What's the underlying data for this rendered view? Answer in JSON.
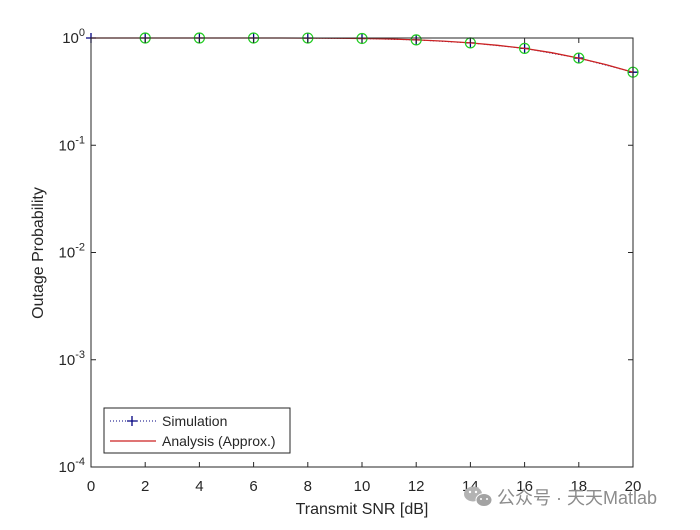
{
  "chart_data": {
    "type": "line",
    "xlabel": "Transmit SNR [dB]",
    "ylabel": "Outage Probability",
    "xlim": [
      0,
      20
    ],
    "ylim": [
      0.0001,
      1
    ],
    "yscale": "log",
    "x_ticks": [
      0,
      2,
      4,
      6,
      8,
      10,
      12,
      14,
      16,
      18,
      20
    ],
    "x_tick_labels": [
      "0",
      "2",
      "4",
      "6",
      "8",
      "10",
      "12",
      "14",
      "16",
      "18",
      "20"
    ],
    "y_ticks": [
      {
        "value": 1,
        "base": "10",
        "exp": "0"
      },
      {
        "value": 0.1,
        "base": "10",
        "exp": "-1"
      },
      {
        "value": 0.01,
        "base": "10",
        "exp": "-2"
      },
      {
        "value": 0.001,
        "base": "10",
        "exp": "-3"
      },
      {
        "value": 0.0001,
        "base": "10",
        "exp": "-4"
      }
    ],
    "grid": false,
    "legend_position": "bottom-left",
    "series": [
      {
        "name": "Simulation",
        "color": "#000080",
        "line_style": "dotted",
        "marker": "plus",
        "x": [
          0,
          2,
          4,
          6,
          8,
          10,
          12,
          14,
          16,
          18,
          20
        ],
        "values": [
          1.0,
          1.0,
          1.0,
          1.0,
          0.999,
          0.99,
          0.96,
          0.9,
          0.8,
          0.65,
          0.48
        ]
      },
      {
        "name": "Analysis (Approx.)",
        "color": "#cc2222",
        "line_style": "solid",
        "marker": "none",
        "x": [
          0,
          1,
          2,
          3,
          4,
          5,
          6,
          7,
          8,
          9,
          10,
          11,
          12,
          13,
          14,
          15,
          16,
          17,
          18,
          19,
          20
        ],
        "values": [
          1.0,
          1.0,
          1.0,
          1.0,
          1.0,
          1.0,
          1.0,
          0.999,
          0.998,
          0.995,
          0.99,
          0.978,
          0.96,
          0.935,
          0.9,
          0.855,
          0.8,
          0.73,
          0.65,
          0.565,
          0.48
        ]
      },
      {
        "name": "",
        "color": "#22cc22",
        "line_style": "none",
        "marker": "circle",
        "x": [
          2,
          4,
          6,
          8,
          10,
          12,
          14,
          16,
          18,
          20
        ],
        "values": [
          1.0,
          1.0,
          1.0,
          0.999,
          0.99,
          0.96,
          0.9,
          0.8,
          0.65,
          0.48
        ]
      }
    ]
  },
  "watermark": {
    "text": "公众号 · 天天Matlab",
    "icon": "wechat-icon"
  }
}
